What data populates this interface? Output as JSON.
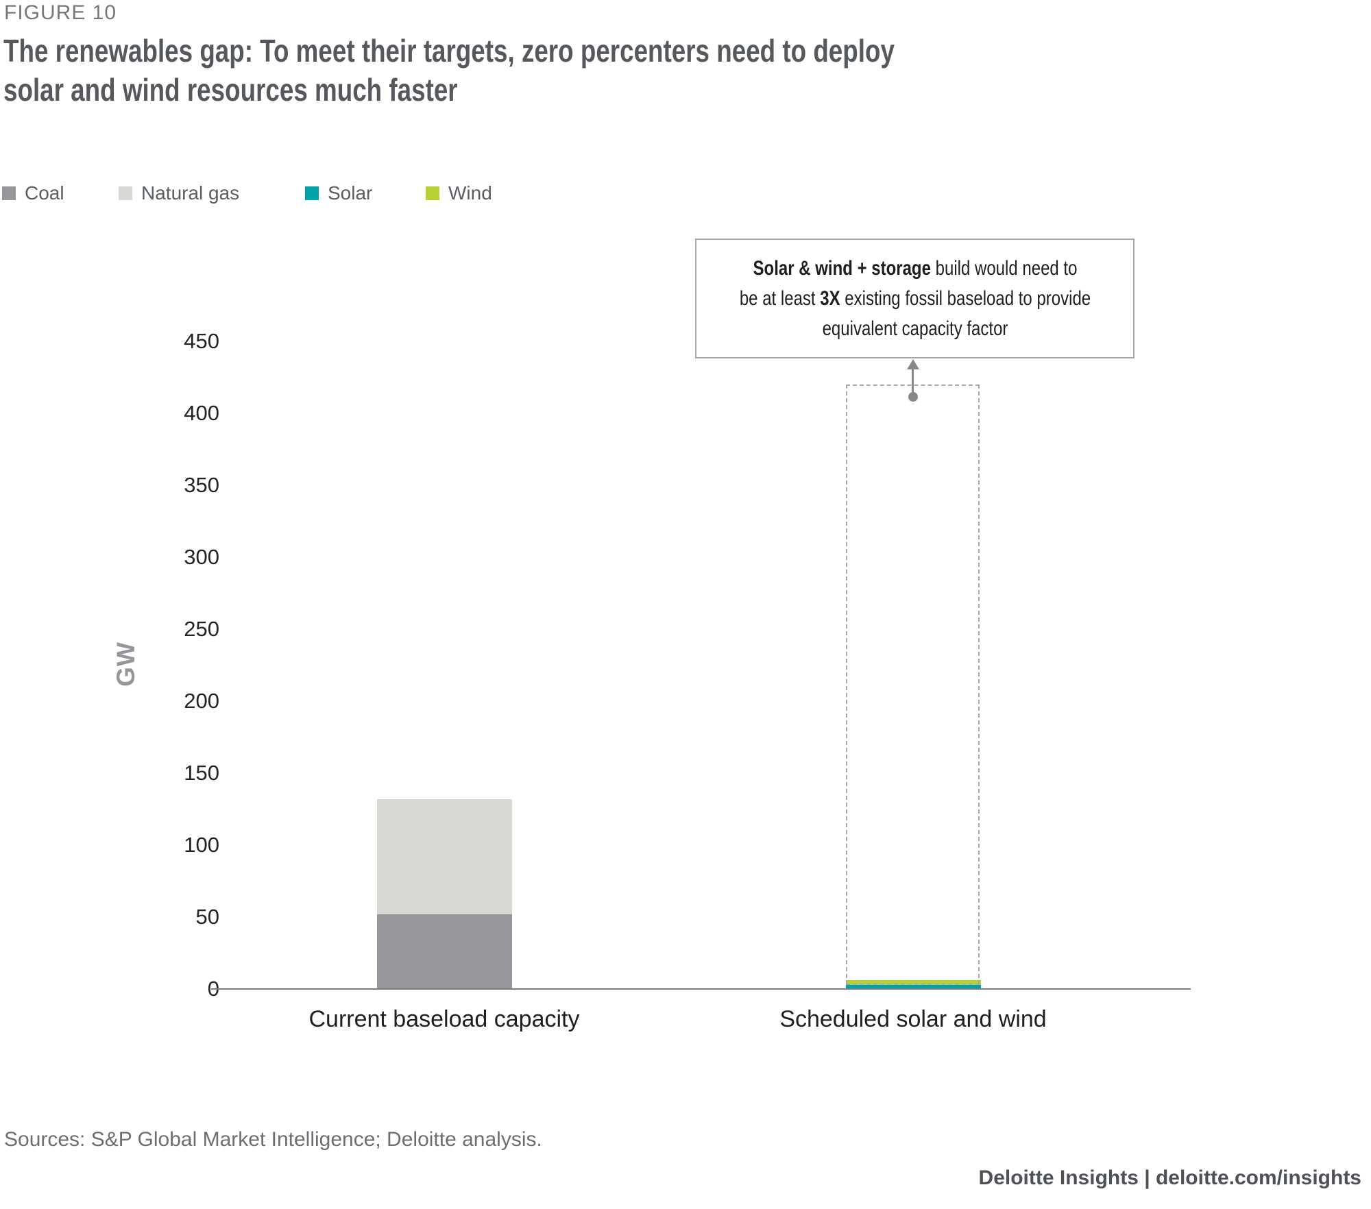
{
  "figure_label": "FIGURE 10",
  "title": {
    "line1": "The renewables gap: To meet their targets, zero percenters need to deploy",
    "line2": "solar and wind resources much faster"
  },
  "legend": {
    "items": [
      {
        "label": "Coal",
        "color": "#96979B"
      },
      {
        "label": "Natural gas",
        "color": "#D8D9D5"
      },
      {
        "label": "Solar",
        "color": "#00A3A7"
      },
      {
        "label": "Wind",
        "color": "#B7D032"
      }
    ]
  },
  "chart_data": {
    "type": "bar",
    "stacked": true,
    "grid": false,
    "legend_position": "top-left",
    "ylabel": "GW",
    "yticks": [
      0,
      50,
      100,
      150,
      200,
      250,
      300,
      350,
      400,
      450
    ],
    "ylim": [
      0,
      465
    ],
    "categories": [
      "Current baseload capacity",
      "Scheduled solar and wind"
    ],
    "series": [
      {
        "name": "Coal",
        "color": "#96979B",
        "values": [
          52,
          0
        ]
      },
      {
        "name": "Natural gas",
        "color": "#D8D9D5",
        "values": [
          80,
          0
        ]
      },
      {
        "name": "Solar",
        "color": "#00A3A7",
        "values": [
          0,
          3
        ]
      },
      {
        "name": "Wind",
        "color": "#B7D032",
        "values": [
          0,
          3
        ]
      }
    ],
    "target_outline": {
      "category": "Scheduled solar and wind",
      "value": 420,
      "style": "dashed",
      "meaning": "required solar & wind + storage build (~3X existing fossil baseload)"
    },
    "annotation": {
      "line1_bold": "Solar & wind + storage",
      "line1_rest": " build would need to",
      "line2_pre": "be at least ",
      "line2_bold": "3X",
      "line2_rest": " existing fossil baseload to provide",
      "line3": "equivalent capacity factor"
    }
  },
  "footer": {
    "sources": "Sources: S&P Global Market Intelligence; Deloitte analysis.",
    "brand": "Deloitte Insights | deloitte.com/insights"
  }
}
